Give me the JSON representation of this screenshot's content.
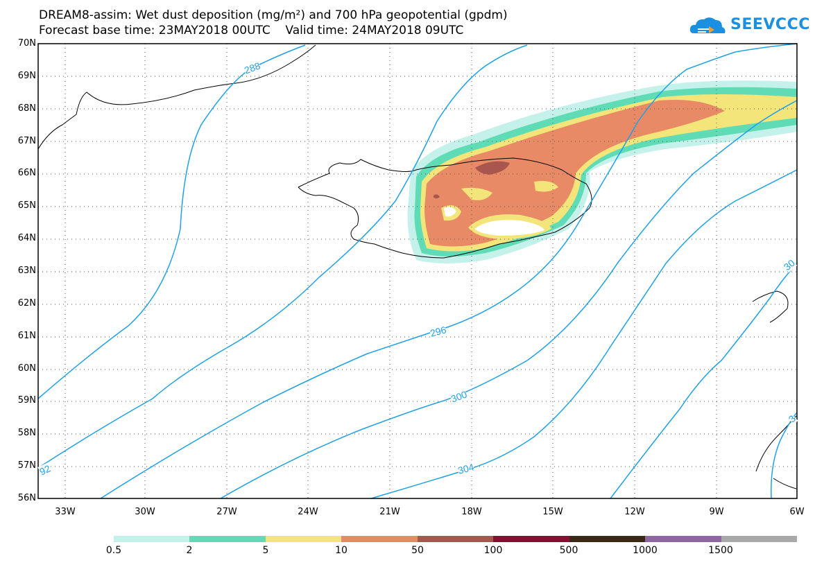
{
  "header": {
    "title_line1": "DREAM8-assim: Wet dust deposition (mg/m²) and 700 hPa geopotential (gpdm)",
    "title_line2": "Forecast base time: 23MAY2018 00UTC    Valid time: 24MAY2018 09UTC",
    "logo_text": "SEEVCCC"
  },
  "map": {
    "lat_labels": [
      "70N",
      "69N",
      "68N",
      "67N",
      "66N",
      "65N",
      "64N",
      "63N",
      "62N",
      "61N",
      "60N",
      "59N",
      "58N",
      "57N",
      "56N"
    ],
    "lon_labels": [
      "33W",
      "30W",
      "27W",
      "24W",
      "21W",
      "18W",
      "15W",
      "12W",
      "9W",
      "6W"
    ],
    "contour_labels": [
      "288",
      "296",
      "300",
      "304",
      "92",
      "30",
      "3"
    ]
  },
  "legend": {
    "labels": [
      "0.5",
      "2",
      "5",
      "10",
      "50",
      "100",
      "500",
      "1000",
      "1500"
    ],
    "colors": [
      "#c4f2ea",
      "#5fdcb6",
      "#f3e57a",
      "#e88a66",
      "#a9574e",
      "#8a0e31",
      "#3c2816",
      "#8f67a0",
      "#a9a9a9"
    ]
  },
  "colors": {
    "contour": "#1fa0e8",
    "coast": "#000000",
    "logo": "#1b8fe0"
  }
}
